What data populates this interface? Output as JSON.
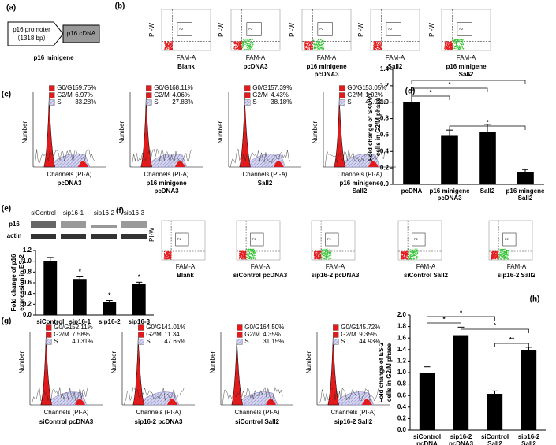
{
  "panels": {
    "a": {
      "label": "(a)",
      "promoter": "p16 promoter",
      "promoter_size": "（1318 bp）",
      "cdna": "p16 cDNA",
      "caption": "p16 minigene"
    },
    "b": {
      "label": "(b)",
      "y_label": "PI-W",
      "x_label": "FAM-A",
      "gate": "P2",
      "captions": [
        [
          "Blank"
        ],
        [
          "pcDNA3"
        ],
        [
          "p16 minigene",
          "pcDNA3"
        ],
        [
          "Sall2"
        ],
        [
          "p16 minigene",
          "Sall2"
        ]
      ]
    },
    "c": {
      "label": "(c)",
      "y_label": "Number",
      "x_label": "Channels (PI-A)",
      "phases": [
        "G0/G1",
        "G2/M",
        "S"
      ],
      "percentages": [
        [
          "59.75%",
          "6.97%",
          "33.28%"
        ],
        [
          "68.11%",
          "4.06%",
          "27.83%"
        ],
        [
          "57.39%",
          "4.43%",
          "38.18%"
        ],
        [
          "53.05%",
          "1.02%",
          "45.93%"
        ]
      ],
      "captions": [
        [
          "pcDNA3"
        ],
        [
          "p16 minigene",
          "pcDNA3"
        ],
        [
          "Sall2"
        ],
        [
          "p16 minigene",
          "Sall2"
        ]
      ]
    },
    "e": {
      "label": "(e)",
      "lanes": [
        "siControl",
        "sip16-1",
        "sip16-2",
        "sip16-3"
      ],
      "rows": [
        "p16",
        "actin"
      ]
    },
    "f": {
      "label": "(f)",
      "y_label": "PI-W",
      "x_label": "FAM-A",
      "gate": "P2",
      "captions": [
        "Blank",
        "siControl pcDNA3",
        "sip16-2 pcDNA3",
        "siControl Sall2",
        "sip16-2 Sall2"
      ]
    },
    "g": {
      "label": "(g)",
      "y_label": "Number",
      "x_label": "Channels (PI-A)",
      "phases": [
        "G0/G1",
        "G2/M",
        "S"
      ],
      "percentages": [
        [
          "52.11%",
          "7.58%",
          "40.31%"
        ],
        [
          "41.01%",
          "11.34",
          "47.65%"
        ],
        [
          "64.50%",
          "4.35%",
          "31.15%"
        ],
        [
          "45.72%",
          "9.35%",
          "44.93%"
        ]
      ],
      "captions": [
        "siControl pcDNA3",
        "sip16-2 pcDNA3",
        "siControl Sall2",
        "sip16-2 Sall2"
      ]
    }
  },
  "chart_data": [
    {
      "type": "bar",
      "panel_label": "(d)",
      "y_label": [
        "Fold change of  SKOV3",
        "cells in G2/M phase"
      ],
      "categories": [
        [
          "pcDNA"
        ],
        [
          "p16 minigene",
          "pcDNA3"
        ],
        [
          "Sall2"
        ],
        [
          "p16 mingene",
          "Sall2"
        ]
      ],
      "values": [
        1.0,
        0.59,
        0.64,
        0.15
      ],
      "errors": [
        0.15,
        0.07,
        0.09,
        0.03
      ],
      "color": "#000000",
      "ylim": [
        0,
        1.4
      ],
      "yticks": [
        {
          "value": 0,
          "label": "0.0"
        },
        0.2,
        0.4,
        0.6,
        0.8,
        {
          "value": 1,
          "label": "1.0"
        },
        1.2,
        1.4
      ],
      "significance": [
        "**",
        "*",
        "*",
        "*"
      ]
    },
    {
      "type": "bar",
      "panel_label": "",
      "y_label": [
        "Fold change of p16",
        "expression in ES-2"
      ],
      "categories": [
        [
          "siControl"
        ],
        [
          "sip16-1"
        ],
        [
          "sip16-2"
        ],
        [
          "sip16-3"
        ]
      ],
      "values": [
        1.0,
        0.67,
        0.24,
        0.58
      ],
      "errors": [
        0.07,
        0.04,
        0.03,
        0.03
      ],
      "color": "#000000",
      "ylim": [
        0,
        1.2
      ],
      "yticks": [
        {
          "value": 0,
          "label": "0.0"
        },
        0.2,
        0.4,
        0.6,
        0.8,
        {
          "value": 1,
          "label": "1.0"
        },
        1.2
      ],
      "significance": [
        "*",
        "*",
        "*"
      ]
    },
    {
      "type": "bar",
      "panel_label": "(h)",
      "y_label": [
        "Fold change of ES-2",
        "cells in G2/M phase"
      ],
      "categories": [
        [
          "siControl",
          "pcDNA"
        ],
        [
          "sip16-2",
          "pcDNA3"
        ],
        [
          "siControl",
          "Sall2"
        ],
        [
          "sip16-2",
          "Sall2"
        ]
      ],
      "values": [
        1.0,
        1.65,
        0.63,
        1.39
      ],
      "errors": [
        0.1,
        0.14,
        0.05,
        0.05
      ],
      "color": "#000000",
      "ylim": [
        0,
        2
      ],
      "yticks": [
        {
          "value": 0,
          "label": "0.0"
        },
        0.2,
        0.4,
        0.6,
        0.8,
        {
          "value": 1,
          "label": "1.0"
        },
        1.2,
        1.4,
        1.6,
        1.8,
        {
          "value": 2,
          "label": "2.0"
        }
      ],
      "significance": [
        "*",
        "*",
        "*",
        "**"
      ]
    }
  ]
}
